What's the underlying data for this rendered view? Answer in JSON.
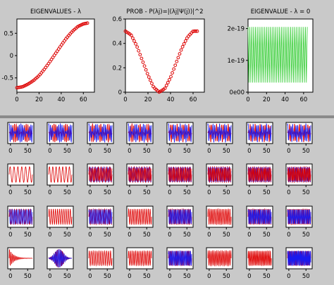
{
  "top_panels": [
    {
      "title": "EIGENVALUES - λ",
      "type": "scatter",
      "color": "#dd0000",
      "marker": "circle",
      "xlim": [
        0,
        70
      ],
      "ylim": [
        -0.82,
        0.82
      ],
      "xticks": [
        "0",
        "20",
        "40",
        "60"
      ],
      "xtick_values": [
        0,
        20,
        40,
        60
      ],
      "yticks": [
        "0.5",
        "0",
        "-0.5"
      ],
      "ytick_values": [
        0.5,
        0,
        -0.5
      ],
      "points": [
        [
          0,
          -0.72
        ],
        [
          5,
          -0.7
        ],
        [
          10,
          -0.64
        ],
        [
          15,
          -0.56
        ],
        [
          20,
          -0.45
        ],
        [
          25,
          -0.3
        ],
        [
          30,
          -0.13
        ],
        [
          35,
          0.05
        ],
        [
          40,
          0.23
        ],
        [
          45,
          0.4
        ],
        [
          50,
          0.54
        ],
        [
          55,
          0.65
        ],
        [
          60,
          0.71
        ],
        [
          64,
          0.73
        ]
      ]
    },
    {
      "title": "PROB - P(λj)=|(λj|Ψ(j))|^2",
      "type": "scatter",
      "color": "#dd0000",
      "marker": "circle",
      "xlim": [
        0,
        70
      ],
      "ylim": [
        0,
        0.6
      ],
      "xticks": [
        "0",
        "20",
        "40",
        "60"
      ],
      "xtick_values": [
        0,
        20,
        40,
        60
      ],
      "yticks": [
        "0.6",
        "0.4",
        "0.2",
        "0"
      ],
      "ytick_values": [
        0.6,
        0.4,
        0.2,
        0
      ],
      "points": [
        [
          0,
          0.5
        ],
        [
          5,
          0.47
        ],
        [
          10,
          0.38
        ],
        [
          15,
          0.26
        ],
        [
          20,
          0.14
        ],
        [
          25,
          0.04
        ],
        [
          30,
          0.0
        ],
        [
          35,
          0.03
        ],
        [
          40,
          0.12
        ],
        [
          45,
          0.24
        ],
        [
          50,
          0.36
        ],
        [
          55,
          0.45
        ],
        [
          60,
          0.5
        ],
        [
          64,
          0.5
        ]
      ]
    },
    {
      "title": "EIGENVALUE - λ = 0",
      "type": "line",
      "color": "#33cc33",
      "xlim": [
        0,
        70
      ],
      "ylim": [
        0,
        2.3e-19
      ],
      "xticks": [
        "0",
        "20",
        "40",
        "60"
      ],
      "xtick_values": [
        0,
        20,
        40,
        60
      ],
      "yticks": [
        "2e-19",
        "1e-19",
        "0e00"
      ],
      "ytick_values": [
        2e-19,
        1e-19,
        0
      ],
      "oscillation": {
        "x_start": 0,
        "x_end": 64,
        "cycles": 32,
        "min": 3e-20,
        "max": 2.05e-19
      }
    }
  ],
  "grid_panels": {
    "rows": 4,
    "cols": 8,
    "xticks": [
      "0",
      "50"
    ],
    "xtick_values": [
      0,
      50
    ],
    "xlim": [
      -8,
      68
    ],
    "series_colors": [
      "#dd0000",
      "#1a1aee"
    ],
    "row_styles": [
      "envelope",
      "red-wave",
      "mixed-wave",
      "packet"
    ]
  }
}
